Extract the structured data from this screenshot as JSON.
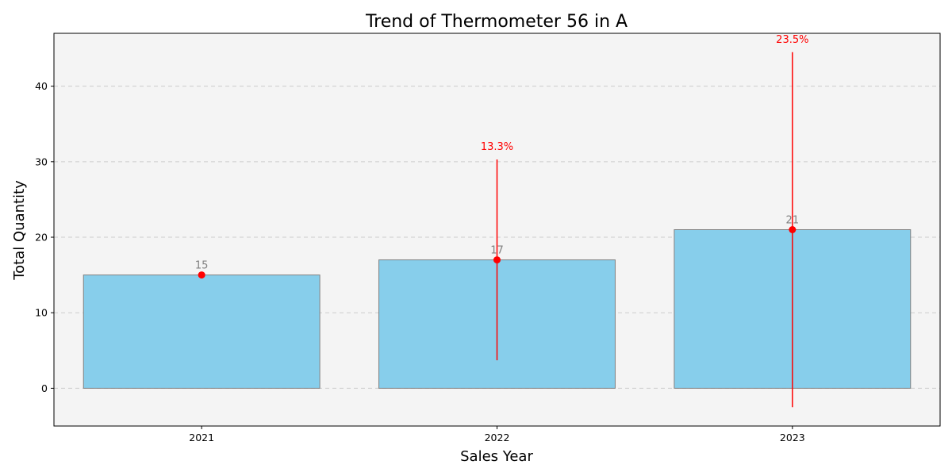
{
  "chart_data": {
    "type": "bar",
    "title": "Trend of Thermometer 56 in A",
    "xlabel": "Sales Year",
    "ylabel": "Total Quantity",
    "categories": [
      "2021",
      "2022",
      "2023"
    ],
    "values": [
      15,
      17,
      21
    ],
    "value_labels": [
      "15",
      "17",
      "21"
    ],
    "error_low": [
      15,
      3.7,
      -2.5
    ],
    "error_high": [
      15,
      30.3,
      44.5
    ],
    "change_labels": [
      "",
      "13.3%",
      "23.5%"
    ],
    "ylim": [
      -5,
      47
    ],
    "yticks": [
      0,
      10,
      20,
      30,
      40
    ],
    "ytick_labels": [
      "0",
      "10",
      "20",
      "30",
      "40"
    ],
    "grid": true,
    "colors": {
      "bar_fill": "#87ceeb",
      "bar_edge": "#808080",
      "marker": "#ff0000",
      "plot_bg": "#f4f4f4",
      "grid": "#cccccc",
      "value_text": "#808080",
      "change_text": "#ff0000"
    }
  }
}
